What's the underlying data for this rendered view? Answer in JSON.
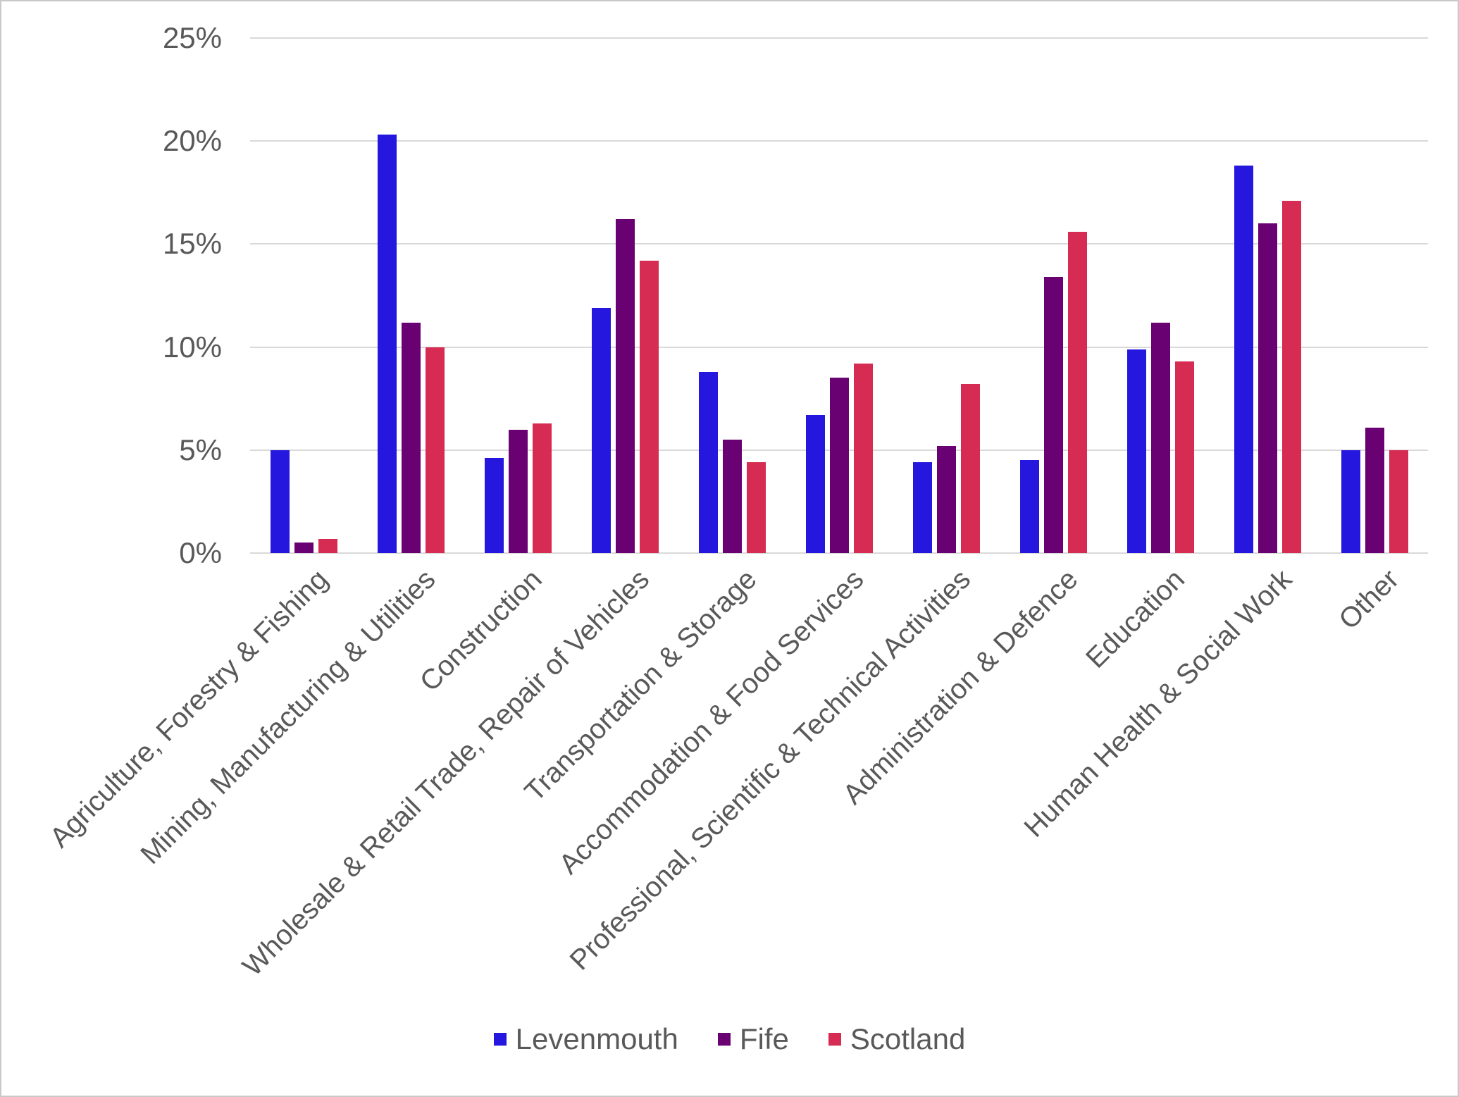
{
  "chart_data": {
    "type": "bar",
    "title": "",
    "xlabel": "",
    "ylabel": "",
    "ylim": [
      0,
      25
    ],
    "ytick_step": 5,
    "ytick_labels": [
      "0%",
      "5%",
      "10%",
      "15%",
      "20%",
      "25%"
    ],
    "grid": true,
    "legend_position": "bottom",
    "categories": [
      "Agriculture, Forestry & Fishing",
      "Mining, Manufacturing & Utilities",
      "Construction",
      "Wholesale & Retail Trade, Repair of Vehicles",
      "Transportation & Storage",
      "Accommodation & Food Services",
      "Professional, Scientific & Technical Activities",
      "Administration & Defence",
      "Education",
      "Human Health & Social Work",
      "Other"
    ],
    "series": [
      {
        "name": "Levenmouth",
        "color": "#2517dd",
        "values": [
          5.0,
          20.3,
          4.6,
          11.9,
          8.8,
          6.7,
          4.4,
          4.5,
          9.9,
          18.8,
          5.0
        ]
      },
      {
        "name": "Fife",
        "color": "#6a0173",
        "values": [
          0.5,
          11.2,
          6.0,
          16.2,
          5.5,
          8.5,
          5.2,
          13.4,
          11.2,
          16.0,
          6.1
        ]
      },
      {
        "name": "Scotland",
        "color": "#d62b52",
        "values": [
          0.7,
          10.0,
          6.3,
          14.2,
          4.4,
          9.2,
          8.2,
          15.6,
          9.3,
          17.1,
          5.0
        ]
      }
    ],
    "colors": {
      "axis_text": "#595959",
      "gridline": "#d9d9d9",
      "background": "#ffffff",
      "border": "#c9c9c9"
    }
  }
}
